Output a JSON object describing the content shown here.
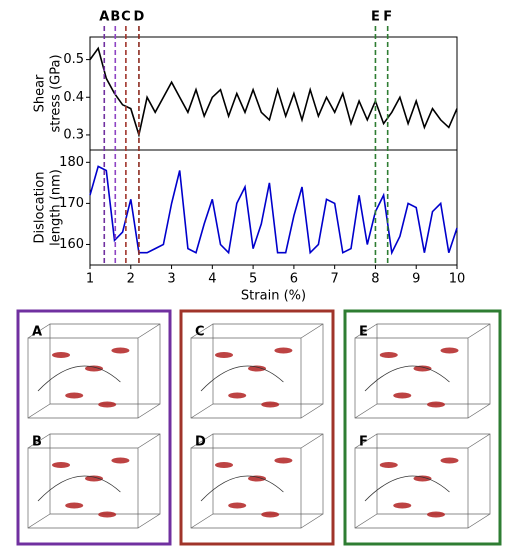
{
  "chart_data": [
    {
      "type": "line",
      "ylabel": [
        "Shear",
        "stress (GPa)"
      ],
      "x": [
        1.0,
        1.2,
        1.4,
        1.6,
        1.8,
        2.0,
        2.2,
        2.4,
        2.6,
        2.8,
        3.0,
        3.2,
        3.4,
        3.6,
        3.8,
        4.0,
        4.2,
        4.4,
        4.6,
        4.8,
        5.0,
        5.2,
        5.4,
        5.6,
        5.8,
        6.0,
        6.2,
        6.4,
        6.6,
        6.8,
        7.0,
        7.2,
        7.4,
        7.6,
        7.8,
        8.0,
        8.2,
        8.4,
        8.6,
        8.8,
        9.0,
        9.2,
        9.4,
        9.6,
        9.8,
        10.0
      ],
      "series": [
        {
          "color": "#000000",
          "values": [
            0.5,
            0.53,
            0.45,
            0.41,
            0.38,
            0.37,
            0.3,
            0.4,
            0.36,
            0.4,
            0.44,
            0.4,
            0.36,
            0.42,
            0.35,
            0.4,
            0.42,
            0.35,
            0.41,
            0.36,
            0.42,
            0.36,
            0.34,
            0.42,
            0.35,
            0.41,
            0.34,
            0.42,
            0.35,
            0.4,
            0.36,
            0.41,
            0.33,
            0.39,
            0.34,
            0.39,
            0.33,
            0.36,
            0.4,
            0.33,
            0.39,
            0.32,
            0.37,
            0.34,
            0.32,
            0.37
          ]
        }
      ],
      "xlim": [
        1,
        10
      ],
      "ylim": [
        0.26,
        0.56
      ],
      "yticks": [
        0.3,
        0.4,
        0.5
      ],
      "markers": [
        {
          "label": "A",
          "x": 1.35,
          "color": "#7030a0"
        },
        {
          "label": "B",
          "x": 1.62,
          "color": "#8e44c4"
        },
        {
          "label": "C",
          "x": 1.88,
          "color": "#a0342a"
        },
        {
          "label": "D",
          "x": 2.2,
          "color": "#8b2a1e"
        },
        {
          "label": "E",
          "x": 8.0,
          "color": "#2e7d32"
        },
        {
          "label": "F",
          "x": 8.3,
          "color": "#2e7d32"
        }
      ]
    },
    {
      "type": "line",
      "ylabel": [
        "Dislocation",
        "length (nm)"
      ],
      "xlabel": "Strain (%)",
      "x": [
        1.0,
        1.2,
        1.4,
        1.6,
        1.8,
        2.0,
        2.2,
        2.4,
        2.6,
        2.8,
        3.0,
        3.2,
        3.4,
        3.6,
        3.8,
        4.0,
        4.2,
        4.4,
        4.6,
        4.8,
        5.0,
        5.2,
        5.4,
        5.6,
        5.8,
        6.0,
        6.2,
        6.4,
        6.6,
        6.8,
        7.0,
        7.2,
        7.4,
        7.6,
        7.8,
        8.0,
        8.2,
        8.4,
        8.6,
        8.8,
        9.0,
        9.2,
        9.4,
        9.6,
        9.8,
        10.0
      ],
      "series": [
        {
          "color": "#0000cc",
          "values": [
            172,
            179,
            178,
            161,
            163,
            171,
            158,
            158,
            159,
            160,
            170,
            178,
            159,
            158,
            165,
            171,
            160,
            158,
            170,
            174,
            159,
            165,
            175,
            158,
            158,
            167,
            174,
            158,
            160,
            171,
            170,
            158,
            159,
            172,
            160,
            168,
            172,
            158,
            162,
            170,
            169,
            158,
            168,
            170,
            158,
            164
          ]
        }
      ],
      "xlim": [
        1,
        10
      ],
      "xticks": [
        1,
        2,
        3,
        4,
        5,
        6,
        7,
        8,
        9,
        10
      ],
      "ylim": [
        155,
        183
      ],
      "yticks": [
        160,
        170,
        180
      ]
    }
  ]
}
